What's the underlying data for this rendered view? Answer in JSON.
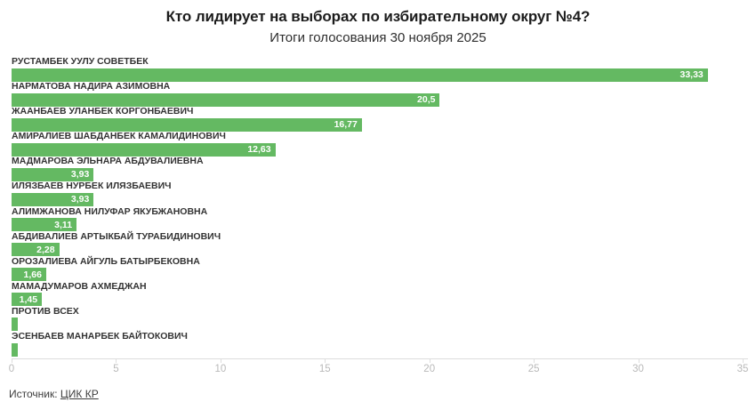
{
  "header": {
    "title": "Кто лидирует на выборах по избирательному округ №4?",
    "subtitle": "Итоги голосования 30 ноября 2025"
  },
  "chart_data": {
    "type": "bar",
    "orientation": "horizontal",
    "title": "Кто лидирует на выборах по избирательному округ №4?",
    "subtitle": "Итоги голосования 30 ноября 2025",
    "categories": [
      "РУСТАМБЕК УУЛУ СОВЕТБЕК",
      "НАРМАТОВА НАДИРА АЗИМОВНА",
      "ЖААНБАЕВ УЛАНБЕК КОРГОНБАЕВИЧ",
      "АМИРАЛИЕВ ШАБДАНБЕК КАМАЛИДИНОВИЧ",
      "МАДМАРОВА ЭЛЬНАРА АБДУВАЛИЕВНА",
      "ИЛЯЗБАЕВ НУРБЕК ИЛЯЗБАЕВИЧ",
      "АЛИМЖАНОВА НИЛУФАР ЯКУБЖАНОВНА",
      "АБДИВАЛИЕВ АРТЫКБАЙ ТУРАБИДИНОВИЧ",
      "ОРОЗАЛИЕВА АЙГУЛЬ БАТЫРБЕКОВНА",
      "МАМАДУМАРОВ АХМЕДЖАН",
      "ПРОТИВ ВСЕХ",
      "ЭСЕНБАЕВ МАНАРБЕК БАЙТОКОВИЧ"
    ],
    "values": [
      33.33,
      20.5,
      16.77,
      12.63,
      3.93,
      3.93,
      3.11,
      2.28,
      1.66,
      1.45,
      0.3,
      0.3
    ],
    "value_labels": [
      "33,33",
      "20,5",
      "16,77",
      "12,63",
      "3,93",
      "3,93",
      "3,11",
      "2,28",
      "1,66",
      "1,45",
      "",
      ""
    ],
    "xlabel": "",
    "ylabel": "",
    "xlim": [
      0,
      35
    ],
    "x_ticks": [
      0,
      5,
      10,
      15,
      20,
      25,
      30,
      35
    ],
    "x_tick_labels": [
      "0",
      "5",
      "10",
      "15",
      "20",
      "25",
      "30",
      "35"
    ],
    "grid": false,
    "legend": "none",
    "bar_color": "#64b962"
  },
  "footer": {
    "source_label": "Источник: ",
    "source_link": "ЦИК КР"
  }
}
